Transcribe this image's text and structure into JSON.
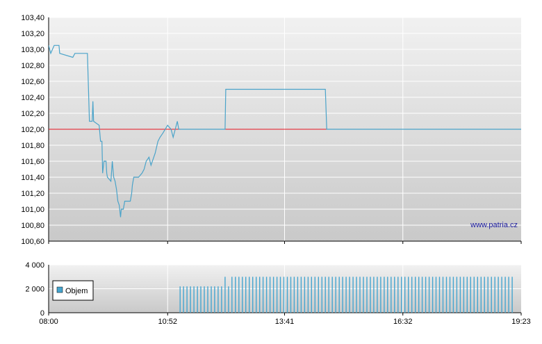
{
  "colors": {
    "price_line": "#4aa3c9",
    "reference_line": "#e8141e",
    "volume_bar": "#45a5cf",
    "grid": "#ffffff",
    "plot_bg_top": "#f1f1f1",
    "plot_bg_bottom": "#c9c9c9"
  },
  "chart_data": [
    {
      "type": "line",
      "watermark": "www.patria.cz",
      "x_unit": "time",
      "xlim": [
        "08:00",
        "19:23"
      ],
      "ylim": [
        100.6,
        103.4
      ],
      "y_ticks": [
        "103,40",
        "103,20",
        "103,00",
        "102,80",
        "102,60",
        "102,40",
        "102,20",
        "102,00",
        "101,80",
        "101,60",
        "101,40",
        "101,20",
        "101,00",
        "100,80",
        "100,60"
      ],
      "y_tick_values": [
        103.4,
        103.2,
        103.0,
        102.8,
        102.6,
        102.4,
        102.2,
        102.0,
        101.8,
        101.6,
        101.4,
        101.2,
        101.0,
        100.8,
        100.6
      ],
      "grid": true,
      "reference_value": 102.0,
      "series": [
        {
          "points": [
            [
              "08:00",
              103.05
            ],
            [
              "08:03",
              102.95
            ],
            [
              "08:08",
              103.05
            ],
            [
              "08:15",
              103.05
            ],
            [
              "08:16",
              102.95
            ],
            [
              "08:35",
              102.9
            ],
            [
              "08:38",
              102.95
            ],
            [
              "08:42",
              102.95
            ],
            [
              "08:56",
              102.95
            ],
            [
              "08:59",
              102.1
            ],
            [
              "09:03",
              102.1
            ],
            [
              "09:04",
              102.35
            ],
            [
              "09:05",
              102.1
            ],
            [
              "09:13",
              102.05
            ],
            [
              "09:15",
              101.85
            ],
            [
              "09:17",
              101.85
            ],
            [
              "09:18",
              101.45
            ],
            [
              "09:20",
              101.6
            ],
            [
              "09:23",
              101.6
            ],
            [
              "09:24",
              101.45
            ],
            [
              "09:25",
              101.4
            ],
            [
              "09:30",
              101.35
            ],
            [
              "09:32",
              101.6
            ],
            [
              "09:34",
              101.4
            ],
            [
              "09:36",
              101.35
            ],
            [
              "09:38",
              101.25
            ],
            [
              "09:40",
              101.1
            ],
            [
              "09:42",
              101.05
            ],
            [
              "09:44",
              100.9
            ],
            [
              "09:45",
              101.0
            ],
            [
              "09:48",
              101.0
            ],
            [
              "09:50",
              101.1
            ],
            [
              "09:58",
              101.1
            ],
            [
              "10:00",
              101.2
            ],
            [
              "10:01",
              101.3
            ],
            [
              "10:03",
              101.4
            ],
            [
              "10:10",
              101.4
            ],
            [
              "10:15",
              101.45
            ],
            [
              "10:18",
              101.5
            ],
            [
              "10:21",
              101.6
            ],
            [
              "10:25",
              101.65
            ],
            [
              "10:28",
              101.55
            ],
            [
              "10:32",
              101.65
            ],
            [
              "10:34",
              101.7
            ],
            [
              "10:38",
              101.85
            ],
            [
              "10:41",
              101.9
            ],
            [
              "10:45",
              101.95
            ],
            [
              "10:52",
              102.05
            ],
            [
              "10:57",
              102.0
            ],
            [
              "11:00",
              101.9
            ],
            [
              "11:03",
              102.0
            ],
            [
              "11:06",
              102.1
            ],
            [
              "11:08",
              102.0
            ],
            [
              "11:10",
              102.0
            ]
          ]
        },
        {
          "points": [
            [
              "11:10",
              102.0
            ],
            [
              "12:15",
              102.0
            ],
            [
              "12:16",
              102.5
            ],
            [
              "14:40",
              102.5
            ],
            [
              "14:42",
              102.0
            ],
            [
              "19:23",
              102.0
            ]
          ]
        }
      ]
    },
    {
      "type": "bar",
      "ylim": [
        0,
        4000
      ],
      "y_ticks": [
        "4 000",
        "2 000",
        "0"
      ],
      "y_tick_values": [
        4000,
        2000,
        0
      ],
      "x_ticks": [
        "08:00",
        "10:52",
        "13:41",
        "16:32",
        "19:23"
      ],
      "legend": {
        "label": "Objem",
        "position": "left"
      },
      "bars": [
        [
          "11:10",
          2200
        ],
        [
          "11:15",
          2200
        ],
        [
          "11:20",
          2200
        ],
        [
          "11:25",
          2200
        ],
        [
          "11:30",
          2200
        ],
        [
          "11:35",
          2200
        ],
        [
          "11:40",
          2200
        ],
        [
          "11:45",
          2200
        ],
        [
          "11:50",
          2200
        ],
        [
          "11:55",
          2200
        ],
        [
          "12:00",
          2200
        ],
        [
          "12:05",
          2200
        ],
        [
          "12:10",
          2200
        ],
        [
          "12:15",
          3000
        ],
        [
          "12:20",
          2200
        ],
        [
          "12:25",
          3000
        ],
        [
          "12:30",
          3000
        ],
        [
          "12:35",
          3000
        ],
        [
          "12:40",
          3000
        ],
        [
          "12:45",
          3000
        ],
        [
          "12:50",
          3000
        ],
        [
          "12:55",
          3000
        ],
        [
          "13:00",
          3000
        ],
        [
          "13:05",
          3000
        ],
        [
          "13:10",
          3000
        ],
        [
          "13:15",
          3000
        ],
        [
          "13:20",
          3000
        ],
        [
          "13:25",
          3000
        ],
        [
          "13:30",
          3000
        ],
        [
          "13:35",
          3000
        ],
        [
          "13:40",
          3000
        ],
        [
          "13:45",
          3000
        ],
        [
          "13:50",
          3000
        ],
        [
          "13:55",
          3000
        ],
        [
          "14:00",
          3000
        ],
        [
          "14:05",
          3000
        ],
        [
          "14:10",
          3000
        ],
        [
          "14:15",
          3000
        ],
        [
          "14:20",
          3000
        ],
        [
          "14:25",
          3000
        ],
        [
          "14:30",
          3000
        ],
        [
          "14:35",
          3000
        ],
        [
          "14:40",
          3000
        ],
        [
          "14:45",
          3000
        ],
        [
          "14:50",
          3000
        ],
        [
          "14:55",
          3000
        ],
        [
          "15:00",
          3000
        ],
        [
          "15:05",
          3000
        ],
        [
          "15:10",
          3000
        ],
        [
          "15:15",
          3000
        ],
        [
          "15:20",
          3000
        ],
        [
          "15:25",
          3000
        ],
        [
          "15:30",
          3000
        ],
        [
          "15:35",
          3000
        ],
        [
          "15:40",
          3000
        ],
        [
          "15:45",
          3000
        ],
        [
          "15:50",
          3000
        ],
        [
          "15:55",
          3000
        ],
        [
          "16:00",
          3000
        ],
        [
          "16:05",
          3000
        ],
        [
          "16:10",
          3000
        ],
        [
          "16:15",
          3000
        ],
        [
          "16:20",
          3000
        ],
        [
          "16:25",
          3000
        ],
        [
          "16:30",
          3000
        ],
        [
          "16:35",
          3000
        ],
        [
          "16:40",
          3000
        ],
        [
          "16:45",
          3000
        ],
        [
          "16:50",
          3000
        ],
        [
          "16:55",
          3000
        ],
        [
          "17:00",
          3000
        ],
        [
          "17:05",
          3000
        ],
        [
          "17:10",
          3000
        ],
        [
          "17:15",
          3000
        ],
        [
          "17:20",
          3000
        ],
        [
          "17:25",
          3000
        ],
        [
          "17:30",
          3000
        ],
        [
          "17:35",
          3000
        ],
        [
          "17:40",
          3000
        ],
        [
          "17:45",
          3000
        ],
        [
          "17:50",
          3000
        ],
        [
          "17:55",
          3000
        ],
        [
          "18:00",
          3000
        ],
        [
          "18:05",
          3000
        ],
        [
          "18:10",
          3000
        ],
        [
          "18:15",
          3000
        ],
        [
          "18:20",
          3000
        ],
        [
          "18:25",
          3000
        ],
        [
          "18:30",
          3000
        ],
        [
          "18:35",
          3000
        ],
        [
          "18:40",
          3000
        ],
        [
          "18:45",
          3000
        ],
        [
          "18:50",
          3000
        ],
        [
          "18:55",
          3000
        ],
        [
          "19:00",
          3000
        ],
        [
          "19:05",
          3000
        ],
        [
          "19:10",
          3000
        ]
      ]
    }
  ]
}
